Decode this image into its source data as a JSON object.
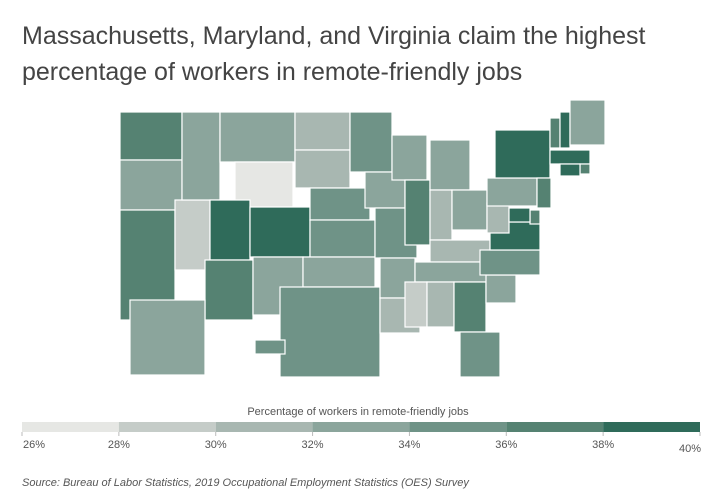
{
  "chart_data": {
    "type": "choropleth",
    "title": "Massachusetts, Maryland, and Virginia claim the highest percentage of workers in remote-friendly jobs",
    "legend_title": "Percentage of workers in remote-friendly jobs",
    "legend_ticks": [
      {
        "value": 26,
        "label": "26%"
      },
      {
        "value": 28,
        "label": "28%"
      },
      {
        "value": 30,
        "label": "30%"
      },
      {
        "value": 32,
        "label": "32%"
      },
      {
        "value": 34,
        "label": "34%"
      },
      {
        "value": 36,
        "label": "36%"
      },
      {
        "value": 38,
        "label": "38%"
      },
      {
        "value": 40,
        "label": "40%"
      }
    ],
    "colors": [
      "#e6e7e4",
      "#c5ccc8",
      "#a8b7b1",
      "#8ba59c",
      "#6f9387",
      "#558272",
      "#2f6b5a"
    ],
    "values": [
      36,
      33,
      36,
      29,
      32,
      32,
      27,
      38,
      36,
      38,
      33,
      30,
      31,
      35,
      35,
      33,
      34,
      35,
      33,
      34,
      32,
      31,
      33,
      37,
      33,
      31,
      33,
      31,
      33,
      29,
      31,
      37,
      35,
      33,
      34,
      39,
      31,
      33,
      38,
      37,
      38,
      32,
      40,
      36,
      38,
      37,
      36,
      39,
      33,
      34
    ],
    "source": "Source: Bureau of Labor Statistics, 2019 Occupational Employment Statistics (OES) Survey"
  }
}
